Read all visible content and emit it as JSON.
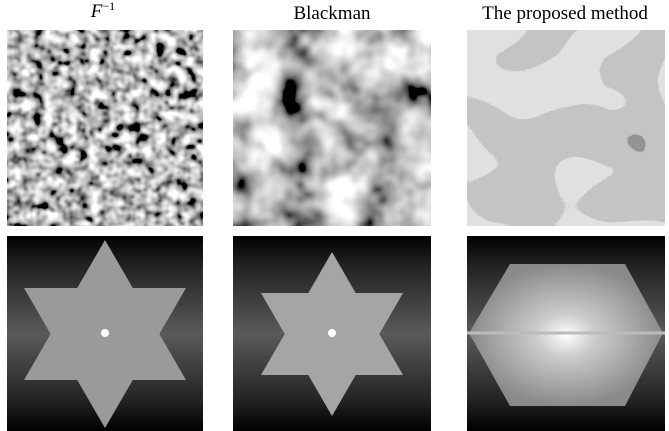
{
  "columns": [
    {
      "label": "F",
      "superscript": "−1"
    },
    {
      "label": "Blackman"
    },
    {
      "label": "The proposed method"
    }
  ]
}
